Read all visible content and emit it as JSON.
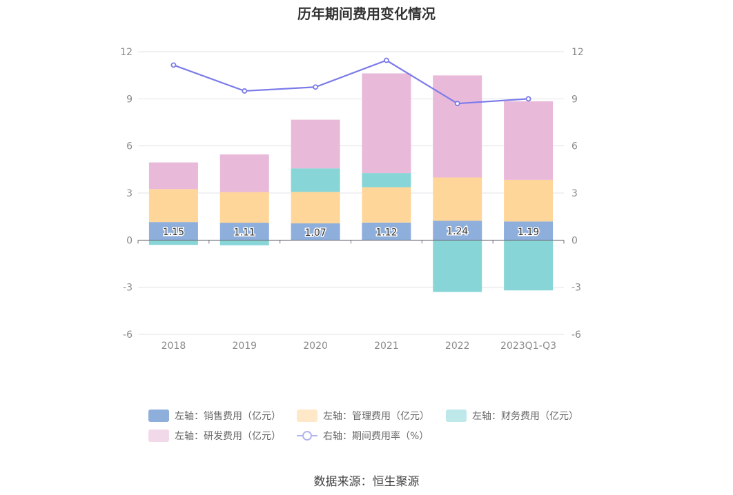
{
  "page": {
    "title": "历年期间费用变化情况",
    "source": "数据来源：恒生聚源"
  },
  "chart_data": {
    "type": "bar",
    "stacked": true,
    "categories": [
      "2018",
      "2019",
      "2020",
      "2021",
      "2022",
      "2023Q1-Q3"
    ],
    "series": [
      {
        "name": "左轴：销售费用（亿元）",
        "axis": "left",
        "color": "#8eaedb",
        "values": [
          1.15,
          1.11,
          1.07,
          1.12,
          1.24,
          1.19
        ],
        "show_labels": true
      },
      {
        "name": "左轴：管理费用（亿元）",
        "axis": "left",
        "color": "#ffd699",
        "values": [
          2.1,
          1.95,
          2.0,
          2.25,
          2.75,
          2.65
        ]
      },
      {
        "name": "左轴：财务费用（亿元）",
        "axis": "left",
        "color": "#88d5d8",
        "values": [
          -0.3,
          -0.33,
          1.5,
          0.9,
          -3.3,
          -3.2
        ]
      },
      {
        "name": "左轴：研发费用（亿元）",
        "axis": "left",
        "color": "#e8b9d9",
        "values": [
          1.7,
          2.4,
          3.1,
          6.35,
          6.5,
          5.0
        ]
      },
      {
        "name": "右轴：期间费用率（%）",
        "axis": "right",
        "type": "line",
        "color": "#7b7bea",
        "values": [
          11.15,
          9.5,
          9.75,
          11.45,
          8.7,
          9.0
        ]
      }
    ],
    "y_left": {
      "min": -6,
      "max": 12,
      "ticks": [
        "-6",
        "-3",
        "0",
        "3",
        "6",
        "9",
        "12"
      ]
    },
    "y_right": {
      "min": -6,
      "max": 12,
      "ticks": [
        "-6",
        "-3",
        "0",
        "3",
        "6",
        "9",
        "12"
      ]
    },
    "grid": true,
    "legend_position": "bottom"
  }
}
